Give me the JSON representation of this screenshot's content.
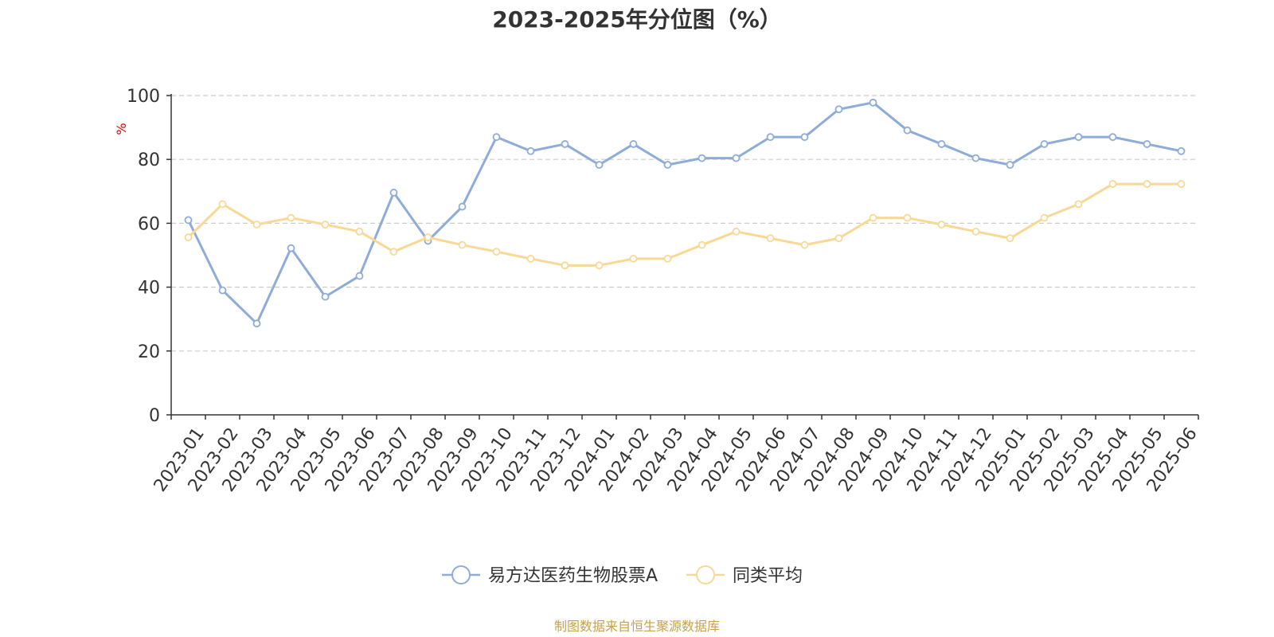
{
  "chart_data": {
    "type": "line",
    "title": "2023-2025年分位图（%）",
    "ylabel": "%",
    "ylim": [
      0,
      100
    ],
    "y_ticks": [
      0,
      20,
      40,
      60,
      80,
      100
    ],
    "grid": true,
    "legend_position": "bottom",
    "categories": [
      "2023-01",
      "2023-02",
      "2023-03",
      "2023-04",
      "2023-05",
      "2023-06",
      "2023-07",
      "2023-08",
      "2023-09",
      "2023-10",
      "2023-11",
      "2023-12",
      "2024-01",
      "2024-02",
      "2024-03",
      "2024-04",
      "2024-05",
      "2024-06",
      "2024-07",
      "2024-08",
      "2024-09",
      "2024-10",
      "2024-11",
      "2024-12",
      "2025-01",
      "2025-02",
      "2025-03",
      "2025-04",
      "2025-05",
      "2025-06"
    ],
    "series": [
      {
        "name": "易方达医药生物股票A",
        "color": "#8EACD8",
        "values": [
          61,
          39,
          28.6,
          52.2,
          37,
          43.5,
          69.6,
          54.5,
          65.2,
          87,
          82.6,
          84.8,
          78.3,
          84.8,
          78.3,
          80.4,
          80.4,
          87,
          87,
          95.7,
          97.8,
          89.1,
          84.8,
          80.4,
          78.3,
          84.8,
          87,
          87,
          84.8,
          82.6
        ]
      },
      {
        "name": "同类平均",
        "color": "#F9D895",
        "values": [
          55.6,
          66,
          59.6,
          61.7,
          59.6,
          57.4,
          51.1,
          55.6,
          53.2,
          51.1,
          48.9,
          46.8,
          46.8,
          48.9,
          48.9,
          53.2,
          57.4,
          55.3,
          53.2,
          55.3,
          61.7,
          61.7,
          59.6,
          57.4,
          55.3,
          61.7,
          66,
          72.3,
          72.3,
          72.3
        ]
      }
    ]
  },
  "footer": {
    "source_text": "制图数据来自恒生聚源数据库"
  },
  "colors": {
    "source_text": "#C8A04A",
    "axis": "#333333",
    "grid": "#CCCCCC",
    "ylabel": "#E60000"
  }
}
